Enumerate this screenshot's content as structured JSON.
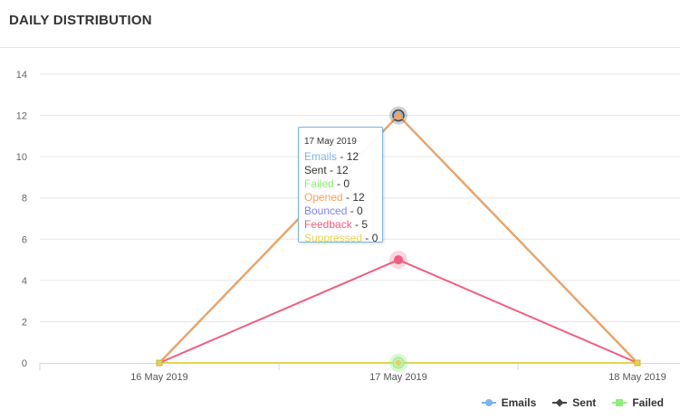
{
  "header": {
    "title": "DAILY DISTRIBUTION"
  },
  "chart_data": {
    "type": "line",
    "title": "DAILY DISTRIBUTION",
    "categories": [
      "16 May 2019",
      "17 May 2019",
      "18 May 2019"
    ],
    "ylim": [
      0,
      14
    ],
    "yticks": [
      0,
      2,
      4,
      6,
      8,
      10,
      12,
      14
    ],
    "grid": true,
    "legend_position": "bottom-right",
    "series": [
      {
        "name": "Emails",
        "values": [
          0,
          12,
          0
        ],
        "color": "#7cb5ec"
      },
      {
        "name": "Sent",
        "values": [
          0,
          12,
          0
        ],
        "color": "#434348"
      },
      {
        "name": "Failed",
        "values": [
          0,
          0,
          0
        ],
        "color": "#90ed7d"
      },
      {
        "name": "Opened",
        "values": [
          0,
          12,
          0
        ],
        "color": "#f7a35c"
      },
      {
        "name": "Bounced",
        "values": [
          0,
          0,
          0
        ],
        "color": "#8085e9"
      },
      {
        "name": "Feedback",
        "values": [
          0,
          5,
          0
        ],
        "color": "#f15c80"
      },
      {
        "name": "Suppressed",
        "values": [
          0,
          0,
          0
        ],
        "color": "#e4d354"
      }
    ]
  },
  "tooltip": {
    "date": "17 May 2019",
    "rows": [
      {
        "label": "Emails",
        "value": "12",
        "color": "#7cb5ec"
      },
      {
        "label": "Sent",
        "value": "12",
        "color": "#333333"
      },
      {
        "label": "Failed",
        "value": "0",
        "color": "#90ed7d"
      },
      {
        "label": "Opened",
        "value": "12",
        "color": "#f7a35c"
      },
      {
        "label": "Bounced",
        "value": "0",
        "color": "#8085e9"
      },
      {
        "label": "Feedback",
        "value": "5",
        "color": "#f15c80"
      },
      {
        "label": "Suppressed",
        "value": "0",
        "color": "#e4d354"
      }
    ]
  },
  "legend": [
    {
      "label": "Emails",
      "color": "#7cb5ec",
      "marker": "circle"
    },
    {
      "label": "Sent",
      "color": "#434348",
      "marker": "diamond"
    },
    {
      "label": "Failed",
      "color": "#90ed7d",
      "marker": "square"
    }
  ]
}
